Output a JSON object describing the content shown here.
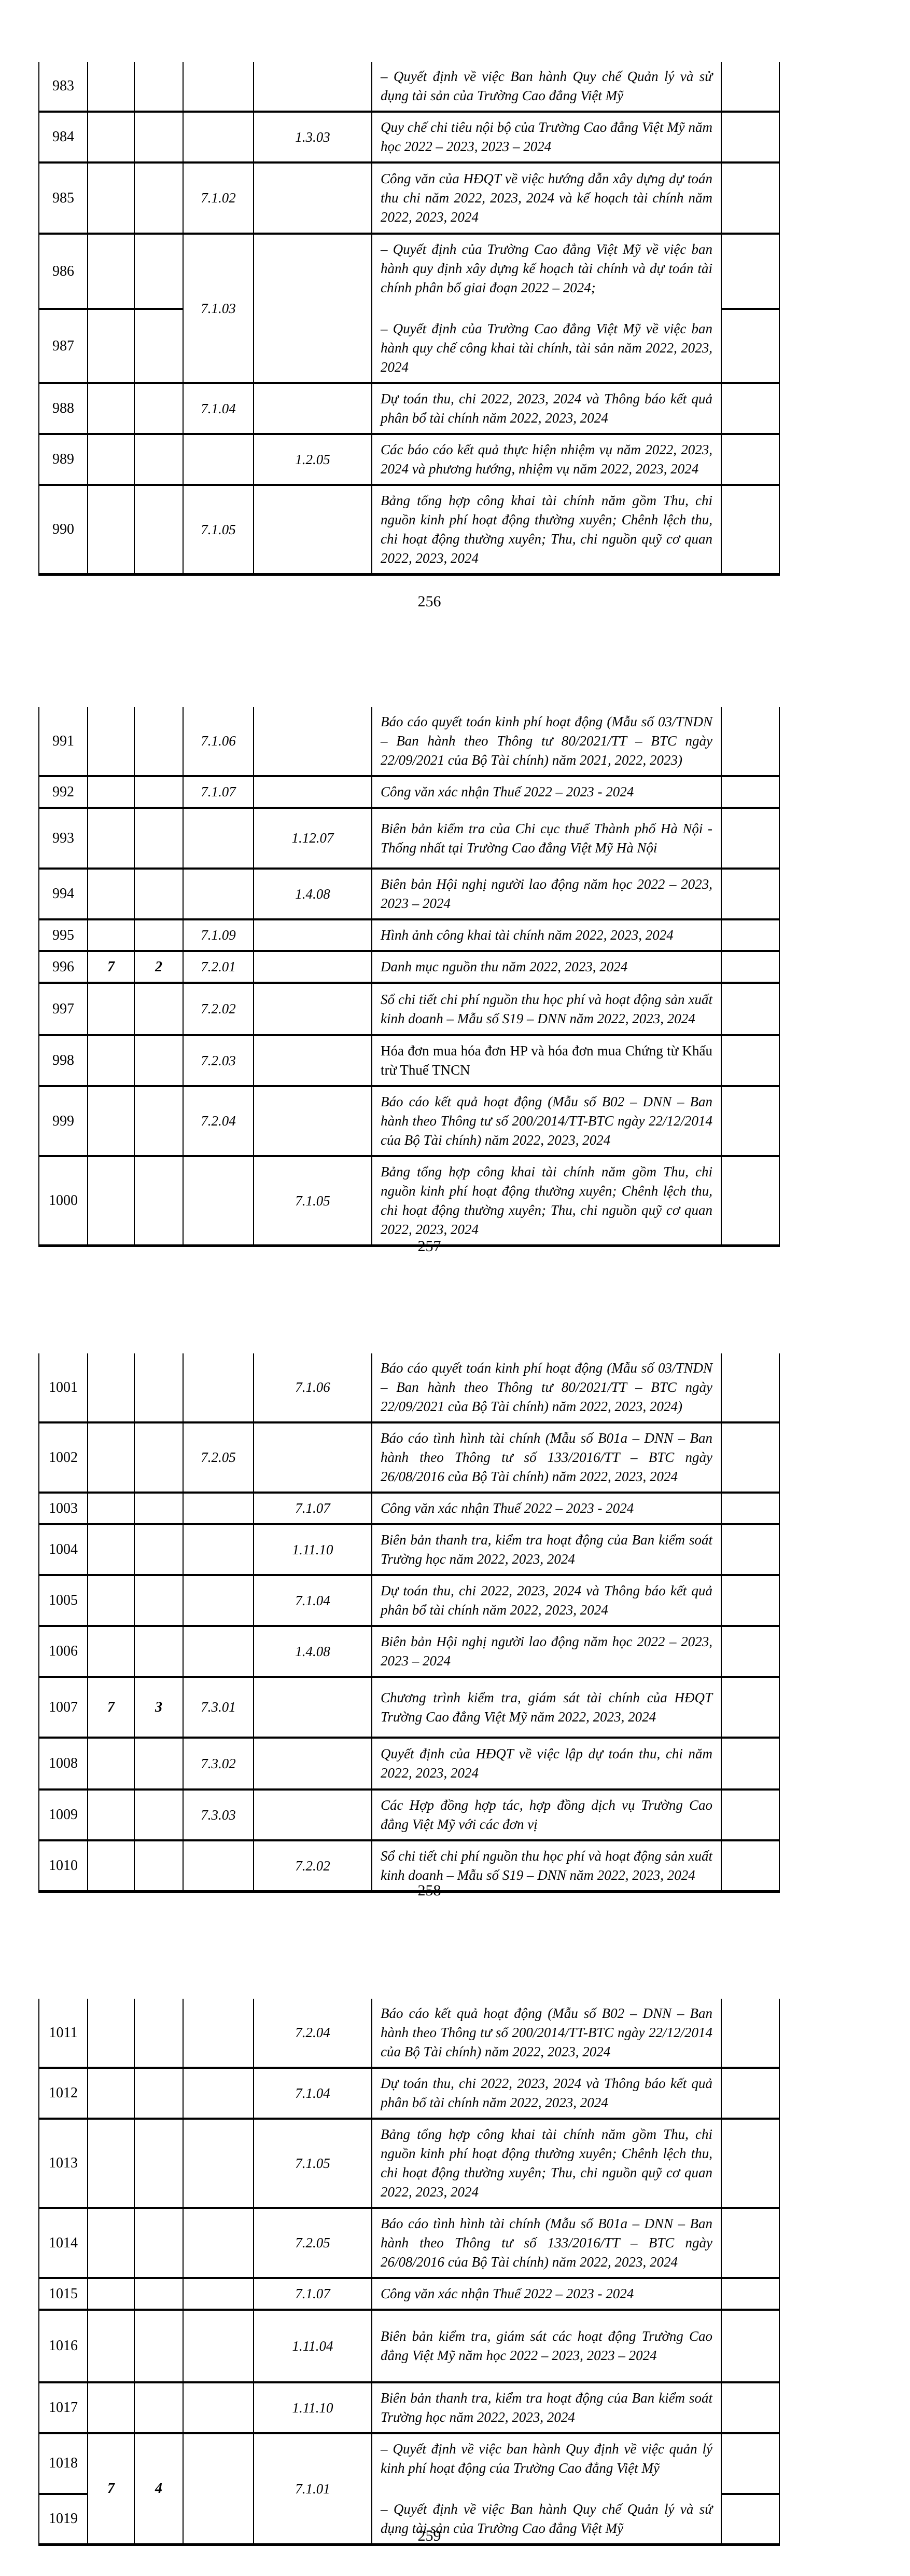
{
  "colors": {
    "background": "#ffffff",
    "text": "#000000",
    "border": "#000000"
  },
  "document": {
    "pages": [
      {
        "page_number": "256",
        "rows": [
          {
            "no": "983",
            "c2": "",
            "c3": "",
            "c4": "",
            "c5": "",
            "h": 92,
            "desc": [
              "– Quyết định về việc Ban hành Quy chế Quản lý và sử dụng tài sản của Trường Cao đẳng Việt Mỹ"
            ]
          },
          {
            "no": "984",
            "c2": "",
            "c3": "",
            "c4": "",
            "c5": "1.3.03",
            "h": 93,
            "desc": [
              "Quy chế chi tiêu nội bộ của Trường Cao đẳng Việt Mỹ năm học 2022 – 2023, 2023 – 2024"
            ]
          },
          {
            "no": "985",
            "c2": "",
            "c3": "",
            "c4": "7.1.02",
            "c5": "",
            "h": 137,
            "desc": [
              "Công văn của HĐQT về việc hướng dẫn xây dựng dự toán thu chi năm 2022, 2023, 2024 và kế hoạch tài chính năm 2022, 2023, 2024"
            ]
          },
          {
            "group": true,
            "no1": "986",
            "no2": "987",
            "merge_c23": false,
            "c2": "",
            "c3": "",
            "c4": "7.1.03",
            "c5": "",
            "h1": 139,
            "h2": 137,
            "desc": [
              "– Quyết định của Trường Cao đẳng Việt Mỹ về việc ban hành quy định xây dựng kế hoạch tài chính và dự toán tài chính phân bổ giai đoạn 2022 – 2024;",
              "– Quyết định của Trường Cao đẳng Việt Mỹ về việc ban hành quy chế công khai tài chính, tài sản năm 2022, 2023, 2024"
            ]
          },
          {
            "no": "988",
            "c2": "",
            "c3": "",
            "c4": "7.1.04",
            "c5": "",
            "h": 94,
            "desc": [
              "Dự toán thu, chi 2022, 2023, 2024 và Thông báo kết quả phân bổ tài chính năm 2022, 2023, 2024"
            ]
          },
          {
            "no": "989",
            "c2": "",
            "c3": "",
            "c4": "",
            "c5": "1.2.05",
            "h": 82,
            "desc": [
              "Các báo cáo kết quả thực hiện nhiệm vụ năm 2022, 2023, 2024 và phương hướng, nhiệm vụ năm 2022, 2023, 2024"
            ]
          },
          {
            "no": "990",
            "c2": "",
            "c3": "",
            "c4": "7.1.05",
            "c5": "",
            "h": 156,
            "desc": [
              "Bảng tổng hợp công khai tài chính năm gồm Thu, chi nguồn kinh phí hoạt động thường xuyên; Chênh lệch thu, chi hoạt động thường xuyên; Thu, chi nguồn quỹ cơ quan 2022, 2023, 2024"
            ]
          }
        ]
      },
      {
        "page_number": "257",
        "rows": [
          {
            "no": "991",
            "c2": "",
            "c3": "",
            "c4": "7.1.06",
            "c5": "",
            "h": 126,
            "desc": [
              "Báo cáo quyết toán kinh phí hoạt động (Mẫu số 03/TNDN – Ban hành theo Thông tư 80/2021/TT – BTC ngày 22/09/2021 của Bộ Tài chính) năm 2021, 2022, 2023)"
            ]
          },
          {
            "no": "992",
            "c2": "",
            "c3": "",
            "c4": "7.1.07",
            "c5": "",
            "h": 56,
            "desc": [
              "Công văn xác nhận Thuế 2022 – 2023 - 2024"
            ]
          },
          {
            "no": "993",
            "c2": "",
            "c3": "",
            "c4": "",
            "c5": "1.12.07",
            "h": 117,
            "desc": [
              "Biên bản kiểm tra của Chi cục thuế Thành phố Hà Nội - Thống nhất tại Trường Cao đẳng Việt Mỹ Hà Nội"
            ]
          },
          {
            "no": "994",
            "c2": "",
            "c3": "",
            "c4": "",
            "c5": "1.4.08",
            "h": 93,
            "desc": [
              "Biên bản Hội nghị người lao động năm học 2022 – 2023, 2023 – 2024"
            ]
          },
          {
            "no": "995",
            "c2": "",
            "c3": "",
            "c4": "7.1.09",
            "c5": "",
            "h": 52,
            "desc": [
              "Hình ảnh công khai tài chính năm 2022, 2023, 2024"
            ]
          },
          {
            "no": "996",
            "c2": "7",
            "c3": "2",
            "c4": "7.2.01",
            "c5": "",
            "h": 52,
            "desc": [
              "Danh mục nguồn thu năm 2022, 2023, 2024"
            ]
          },
          {
            "no": "997",
            "c2": "",
            "c3": "",
            "c4": "7.2.02",
            "c5": "",
            "h": 101,
            "desc": [
              "Sổ chi tiết chi phí nguồn thu học phí và hoạt động sản xuất kinh doanh – Mẫu số S19 – DNN năm 2022, 2023, 2024"
            ]
          },
          {
            "no": "998",
            "c2": "",
            "c3": "",
            "c4": "7.2.03",
            "c5": "",
            "h": 92,
            "upright": true,
            "desc": [
              "Hóa đơn mua hóa đơn HP và hóa đơn mua Chứng từ Khấu trừ Thuế TNCN"
            ]
          },
          {
            "no": "999",
            "c2": "",
            "c3": "",
            "c4": "7.2.04",
            "c5": "",
            "h": 120,
            "desc": [
              "Báo cáo kết quả hoạt động (Mẫu số B02 – DNN – Ban hành theo Thông tư số 200/2014/TT-BTC ngày 22/12/2014 của Bộ Tài chính) năm 2022, 2023, 2024"
            ]
          },
          {
            "no": "1000",
            "c2": "",
            "c3": "",
            "c4": "",
            "c5": "7.1.05",
            "h": 150,
            "desc": [
              "Bảng tổng hợp công khai tài chính năm gồm Thu, chi nguồn kinh phí hoạt động thường xuyên; Chênh lệch thu, chi hoạt động thường xuyên; Thu, chi nguồn quỹ cơ quan 2022, 2023, 2024"
            ]
          }
        ]
      },
      {
        "page_number": "258",
        "rows": [
          {
            "no": "1001",
            "c2": "",
            "c3": "",
            "c4": "",
            "c5": "7.1.06",
            "h": 120,
            "desc": [
              "Báo cáo quyết toán kinh phí hoạt động (Mẫu số 03/TNDN – Ban hành theo Thông tư 80/2021/TT – BTC ngày 22/09/2021 của Bộ Tài chính) năm 2022, 2023, 2024)"
            ]
          },
          {
            "no": "1002",
            "c2": "",
            "c3": "",
            "c4": "7.2.05",
            "c5": "",
            "h": 121,
            "desc": [
              "Báo cáo tình hình tài chính (Mẫu số B01a – DNN – Ban hành theo Thông tư số 133/2016/TT – BTC ngày 26/08/2016 của Bộ Tài chính) năm 2022, 2023, 2024"
            ]
          },
          {
            "no": "1003",
            "c2": "",
            "c3": "",
            "c4": "",
            "c5": "7.1.07",
            "h": 54,
            "desc": [
              "Công văn xác nhận Thuế 2022 – 2023 - 2024"
            ]
          },
          {
            "no": "1004",
            "c2": "",
            "c3": "",
            "c4": "",
            "c5": "1.11.10",
            "h": 90,
            "desc": [
              "Biên bản thanh tra, kiểm tra hoạt động của Ban kiểm soát Trường học năm 2022, 2023, 2024"
            ]
          },
          {
            "no": "1005",
            "c2": "",
            "c3": "",
            "c4": "",
            "c5": "7.1.04",
            "h": 87,
            "desc": [
              "Dự toán thu, chi 2022, 2023, 2024 và Thông báo kết quả phân bổ tài chính năm 2022, 2023, 2024"
            ]
          },
          {
            "no": "1006",
            "c2": "",
            "c3": "",
            "c4": "",
            "c5": "1.4.08",
            "h": 85,
            "desc": [
              "Biên bản Hội nghị người lao động năm học 2022 – 2023, 2023 – 2024"
            ]
          },
          {
            "no": "1007",
            "c2": "7",
            "c3": "3",
            "c4": "7.3.01",
            "c5": "",
            "h": 117,
            "desc": [
              "Chương trình kiểm tra, giám sát tài chính của HĐQT Trường Cao đẳng Việt Mỹ năm 2022, 2023, 2024"
            ]
          },
          {
            "no": "1008",
            "c2": "",
            "c3": "",
            "c4": "7.3.02",
            "c5": "",
            "h": 100,
            "desc": [
              "Quyết định của HĐQT về việc lập dự toán thu, chi năm 2022, 2023, 2024"
            ]
          },
          {
            "no": "1009",
            "c2": "",
            "c3": "",
            "c4": "7.3.03",
            "c5": "",
            "h": 92,
            "desc": [
              "Các Hợp đồng hợp tác, hợp đồng dịch vụ Trường Cao đẳng Việt Mỹ với các đơn vị"
            ]
          },
          {
            "no": "1010",
            "c2": "",
            "c3": "",
            "c4": "",
            "c5": "7.2.02",
            "h": 98,
            "desc": [
              "Sổ chi tiết chi phí nguồn thu học phí và hoạt động sản xuất kinh doanh – Mẫu số S19 – DNN năm 2022, 2023, 2024"
            ]
          }
        ]
      },
      {
        "page_number": "259",
        "rows": [
          {
            "no": "1011",
            "c2": "",
            "c3": "",
            "c4": "",
            "c5": "7.2.04",
            "h": 118,
            "desc": [
              "Báo cáo kết quả hoạt động (Mẫu số B02 – DNN – Ban hành theo Thông tư số 200/2014/TT-BTC ngày 22/12/2014 của Bộ Tài chính) năm 2022, 2023, 2024"
            ]
          },
          {
            "no": "1012",
            "c2": "",
            "c3": "",
            "c4": "",
            "c5": "7.1.04",
            "h": 85,
            "desc": [
              "Dự toán thu, chi 2022, 2023, 2024 và Thông báo kết quả phân bổ tài chính năm 2022, 2023, 2024"
            ]
          },
          {
            "no": "1013",
            "c2": "",
            "c3": "",
            "c4": "",
            "c5": "7.1.05",
            "h": 160,
            "desc": [
              "Bảng tổng hợp công khai tài chính năm gồm Thu, chi nguồn kinh phí hoạt động thường xuyên; Chênh lệch thu, chi hoạt động thường xuyên; Thu, chi nguồn quỹ cơ quan 2022, 2023, 2024"
            ]
          },
          {
            "no": "1014",
            "c2": "",
            "c3": "",
            "c4": "",
            "c5": "7.2.05",
            "h": 117,
            "desc": [
              "Báo cáo tình hình tài chính (Mẫu số B01a – DNN – Ban hành theo Thông tư số 133/2016/TT – BTC ngày 26/08/2016 của Bộ Tài chính) năm 2022, 2023, 2024"
            ]
          },
          {
            "no": "1015",
            "c2": "",
            "c3": "",
            "c4": "",
            "c5": "7.1.07",
            "h": 55,
            "desc": [
              "Công văn xác nhận Thuế 2022 – 2023 - 2024"
            ]
          },
          {
            "no": "1016",
            "c2": "",
            "c3": "",
            "c4": "",
            "c5": "1.11.04",
            "h": 140,
            "desc": [
              "Biên bản kiểm tra, giám sát các hoạt động Trường Cao đẳng Việt Mỹ năm học 2022 – 2023, 2023 – 2024"
            ]
          },
          {
            "no": "1017",
            "c2": "",
            "c3": "",
            "c4": "",
            "c5": "1.11.10",
            "h": 92,
            "desc": [
              "Biên bản thanh tra, kiểm tra hoạt động của Ban kiểm soát Trường học năm 2022, 2023, 2024"
            ]
          },
          {
            "group": true,
            "no1": "1018",
            "no2": "1019",
            "merge_c23": true,
            "c2": "7",
            "c3": "4",
            "c4": "",
            "c5": "7.1.01",
            "h1": 105,
            "h2": 88,
            "desc": [
              "– Quyết định về việc ban hành Quy định về việc quản lý kinh phí hoạt động của Trường Cao đẳng Việt Mỹ",
              "– Quyết định về việc Ban hành Quy chế Quản lý và sử dụng tài sản của Trường Cao đẳng Việt Mỹ"
            ]
          }
        ]
      }
    ]
  }
}
